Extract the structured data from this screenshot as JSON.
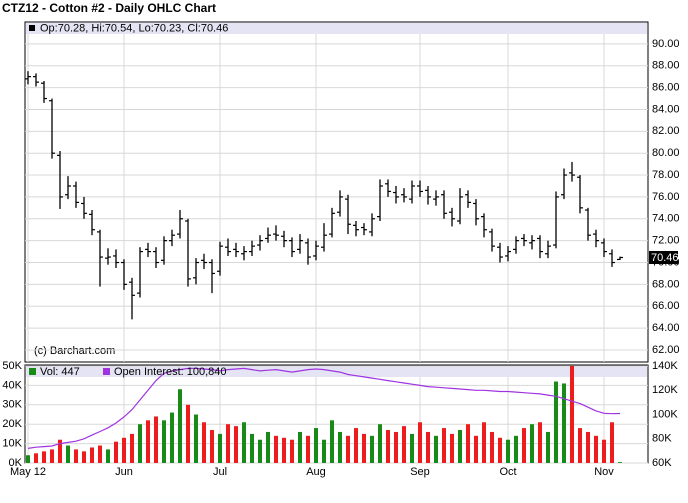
{
  "chart_data": [
    {
      "type": "ohlc",
      "title": "CTZ12 - Cotton #2 - Daily OHLC Chart",
      "info": "Op:70.28, Hi:70.54, Lo:70.23, Cl:70.46",
      "watermark": "(c) Barchart.com",
      "color": "#000000",
      "grid": true,
      "ylim": [
        60.9,
        92.0
      ],
      "yticks": [
        {
          "value": 62,
          "label": "62.00"
        },
        {
          "value": 64,
          "label": "64.00"
        },
        {
          "value": 66,
          "label": "66.00"
        },
        {
          "value": 68,
          "label": "68.00"
        },
        {
          "value": 70,
          "label": "70.00"
        },
        {
          "value": 72,
          "label": "72.00"
        },
        {
          "value": 74,
          "label": "74.00"
        },
        {
          "value": 76,
          "label": "76.00"
        },
        {
          "value": 78,
          "label": "78.00"
        },
        {
          "value": 80,
          "label": "80.00"
        },
        {
          "value": 82,
          "label": "82.00"
        },
        {
          "value": 84,
          "label": "84.00"
        },
        {
          "value": 86,
          "label": "86.00"
        },
        {
          "value": 88,
          "label": "88.00"
        },
        {
          "value": 90,
          "label": "90.00"
        }
      ],
      "open": [
        86.8,
        87,
        86.4,
        84.8,
        79.8,
        76.2,
        77,
        75.4,
        74.4,
        72.8,
        70.4,
        70.6,
        70,
        68.2,
        67.2,
        71.2,
        71,
        70.2,
        72,
        72.6,
        73.8,
        68.6,
        70.2,
        70,
        69.2,
        71.4,
        71.2,
        70.8,
        71,
        71.6,
        72.2,
        72.6,
        72.4,
        72,
        71.2,
        71.8,
        70.6,
        71.4,
        72.6,
        74.6,
        75.8,
        73.4,
        73.2,
        72.8,
        74.2,
        77.2,
        76.4,
        76.2,
        75.8,
        77,
        76.6,
        75.8,
        76.2,
        74.6,
        73.8,
        76.2,
        75.4,
        74.2,
        72.8,
        71.4,
        70.6,
        71.2,
        72.2,
        71.8,
        72.2,
        70.8,
        71.6,
        76.2,
        78.2,
        77.8,
        74.8,
        72.6,
        71.8,
        70.8,
        70.28
      ],
      "high": [
        87.5,
        87.3,
        86.6,
        85,
        80.2,
        77.9,
        77.4,
        76,
        74.8,
        73,
        71.3,
        71.2,
        70.3,
        68.6,
        71.4,
        71.8,
        71.4,
        72.4,
        73,
        74.8,
        74,
        70.4,
        70.8,
        70.3,
        71.9,
        72.2,
        71.8,
        71.5,
        72,
        72.5,
        73.2,
        73.4,
        72.9,
        72.3,
        72.6,
        72.2,
        72,
        73.6,
        75,
        76.6,
        76.2,
        73.8,
        73.6,
        74.5,
        77.6,
        77.6,
        77,
        76.8,
        77.5,
        77.5,
        77,
        76.6,
        76.6,
        75,
        76.8,
        76.6,
        75.8,
        74.5,
        73.1,
        71.8,
        71.5,
        72.4,
        72.6,
        72.5,
        72.5,
        72,
        76.5,
        78.6,
        79.2,
        78,
        75,
        73,
        72.2,
        71.2,
        70.54
      ],
      "low": [
        86.3,
        86.1,
        84.6,
        79.5,
        74.9,
        75.8,
        75,
        74,
        72.5,
        67.8,
        69.8,
        69.5,
        67.5,
        64.8,
        66.8,
        70.5,
        69.5,
        69.8,
        71.5,
        72.2,
        67.8,
        68,
        69.4,
        67.2,
        68.8,
        70.6,
        70.5,
        70.2,
        70.6,
        71.1,
        71.8,
        72,
        71.4,
        70.5,
        70.8,
        69.8,
        70.2,
        71,
        72.3,
        74.2,
        72.6,
        72.4,
        72.5,
        72.4,
        73.8,
        76,
        75.4,
        75.5,
        75.4,
        76,
        75.3,
        75.2,
        74,
        73.3,
        73.5,
        75,
        73.4,
        72.3,
        71,
        70,
        70.1,
        70.8,
        71.5,
        71.2,
        70.4,
        70.4,
        71.3,
        75.8,
        77.4,
        74.5,
        72,
        71.4,
        70.5,
        69.6,
        70.23
      ],
      "close": [
        87,
        86.5,
        85,
        80,
        76,
        77,
        75.5,
        74.5,
        73,
        70.5,
        70.5,
        70,
        68,
        67,
        71,
        71,
        70,
        72,
        72.5,
        74,
        68.5,
        70,
        70,
        69,
        71.5,
        71,
        71,
        71,
        71.5,
        72,
        72.5,
        72.5,
        72,
        71,
        72,
        70.5,
        71.5,
        72.5,
        74.5,
        76,
        73.5,
        73,
        73,
        74,
        77,
        76.5,
        76,
        76,
        77,
        76.5,
        76,
        76,
        74.5,
        74,
        76,
        75.5,
        74,
        73,
        71.5,
        70.5,
        71,
        72,
        72,
        72,
        71,
        71.5,
        76,
        78,
        78,
        75,
        72.5,
        72,
        71,
        70,
        70.46
      ]
    },
    {
      "type": "bar",
      "grid": true,
      "categories": [
        "May 12",
        null,
        null,
        null,
        null,
        null,
        null,
        null,
        null,
        null,
        null,
        null,
        "Jun",
        null,
        null,
        null,
        null,
        null,
        null,
        null,
        null,
        null,
        null,
        null,
        "Jul",
        null,
        null,
        null,
        null,
        null,
        null,
        null,
        null,
        null,
        null,
        null,
        "Aug",
        null,
        null,
        null,
        null,
        null,
        null,
        null,
        null,
        null,
        null,
        null,
        null,
        "Sep",
        null,
        null,
        null,
        null,
        null,
        null,
        null,
        null,
        null,
        null,
        "Oct",
        null,
        null,
        null,
        null,
        null,
        null,
        null,
        null,
        null,
        null,
        null,
        "Nov",
        null,
        null
      ],
      "ylim": [
        0,
        50000
      ],
      "yticks": [
        {
          "value": 0,
          "label": "0K"
        },
        {
          "value": 10000,
          "label": "10K"
        },
        {
          "value": 20000,
          "label": "20K"
        },
        {
          "value": 30000,
          "label": "30K"
        },
        {
          "value": 40000,
          "label": "40K"
        },
        {
          "value": 50000,
          "label": "50K"
        }
      ],
      "y2lim": [
        60000,
        140000
      ],
      "y2ticks": [
        {
          "value": 60000,
          "label": "60K"
        },
        {
          "value": 80000,
          "label": "80K"
        },
        {
          "value": 100000,
          "label": "100K"
        },
        {
          "value": 120000,
          "label": "120K"
        },
        {
          "value": 140000,
          "label": "140K"
        }
      ],
      "series": [
        {
          "name": "Vol: 447",
          "up_color": "#188a18",
          "down_color": "#ee1c1c",
          "values": [
            4000,
            5000,
            6000,
            7000,
            12000,
            9000,
            7000,
            6000,
            8000,
            9000,
            7000,
            11000,
            13000,
            15000,
            20000,
            22000,
            24000,
            22000,
            26000,
            38000,
            30000,
            25000,
            21000,
            17000,
            15000,
            20000,
            19000,
            21000,
            15000,
            12000,
            16000,
            14000,
            13000,
            12000,
            16000,
            14000,
            18000,
            12000,
            22000,
            16000,
            14000,
            18000,
            15000,
            14000,
            20000,
            17000,
            16000,
            19000,
            15000,
            21000,
            16000,
            14000,
            18000,
            15000,
            17000,
            20000,
            14000,
            21000,
            16000,
            13000,
            12000,
            14000,
            18000,
            20000,
            21000,
            16000,
            42000,
            41000,
            50000,
            18000,
            16000,
            14000,
            12000,
            21000,
            447
          ]
        },
        {
          "name": "Open Interest: 100,840",
          "color": "#a033e0",
          "axis": "y2",
          "values": [
            72000,
            73000,
            73500,
            74000,
            76000,
            77000,
            78000,
            80000,
            83000,
            86000,
            89000,
            93000,
            98000,
            104000,
            112000,
            120000,
            128000,
            134000,
            136000,
            137000,
            138000,
            138000,
            137500,
            137000,
            136000,
            137000,
            137500,
            138000,
            137000,
            136000,
            136500,
            137000,
            136000,
            135000,
            136000,
            137000,
            137500,
            137000,
            136000,
            135000,
            133000,
            132000,
            131000,
            130000,
            129000,
            128000,
            127000,
            126000,
            125000,
            124000,
            123000,
            122500,
            122000,
            121500,
            121000,
            120500,
            120000,
            120000,
            119500,
            119000,
            119000,
            118500,
            118000,
            117500,
            117000,
            116000,
            115000,
            113000,
            111000,
            109000,
            106000,
            103000,
            101000,
            100700,
            100840
          ]
        }
      ]
    }
  ]
}
